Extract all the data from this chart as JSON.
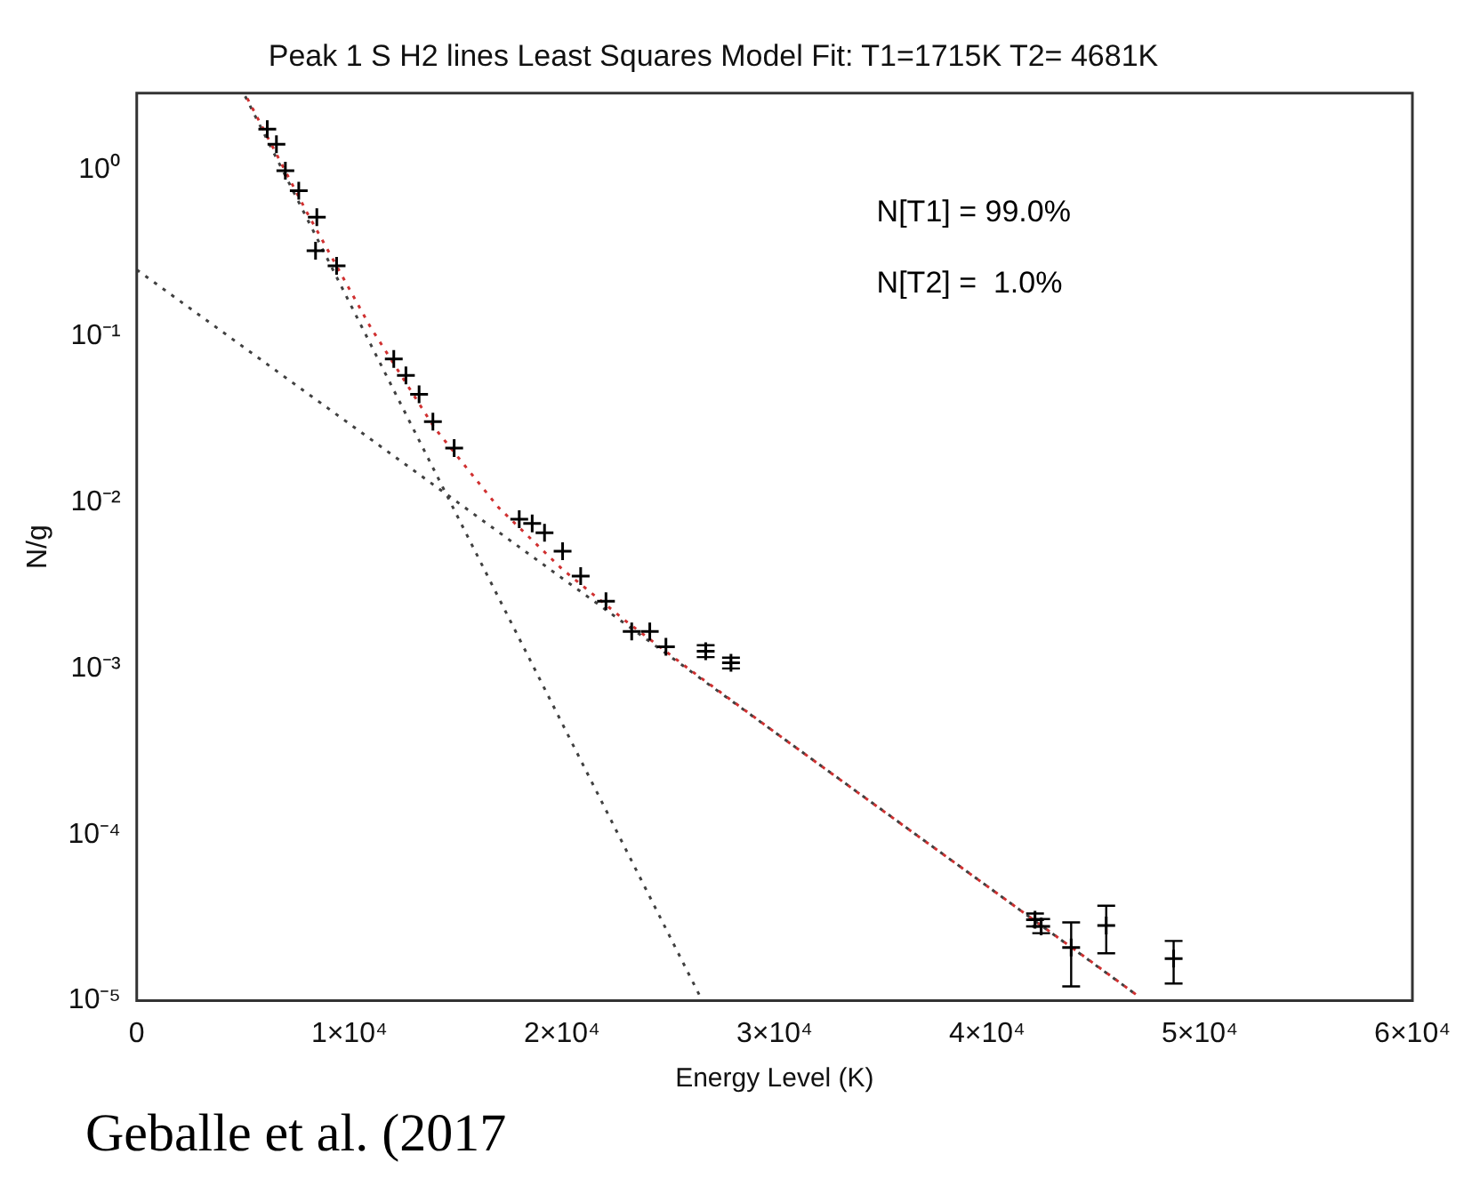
{
  "chart_data": {
    "type": "scatter",
    "title": "Peak 1 S H2 lines Least Squares Model Fit: T1=1715K T2= 4681K",
    "xlabel": "Energy Level (K)",
    "ylabel": "N/g",
    "log": "y",
    "grid": false,
    "legend": false,
    "marker": "cross",
    "xlim": [
      0,
      60000
    ],
    "ylim": [
      1e-05,
      2.9
    ],
    "xticks": [
      0,
      {
        "value": 10000,
        "label": "1×10⁴"
      },
      {
        "value": 20000,
        "label": "2×10⁴"
      },
      {
        "value": 30000,
        "label": "3×10⁴"
      },
      {
        "value": 40000,
        "label": "4×10⁴"
      },
      {
        "value": 50000,
        "label": "5×10⁴"
      },
      {
        "value": 60000,
        "label": "6×10⁴"
      }
    ],
    "yticks": [
      {
        "value": 1e-05,
        "label": "10⁻⁵"
      },
      {
        "value": 0.0001,
        "label": "10⁻⁴"
      },
      {
        "value": 0.001,
        "label": "10⁻³"
      },
      {
        "value": 0.01,
        "label": "10⁻²"
      },
      {
        "value": 0.1,
        "label": "10⁻¹"
      },
      {
        "value": 1,
        "label": "10⁰"
      }
    ],
    "annotations": [
      "N[T1] = 99.0%",
      "N[T2] =  1.0%",
      "Geballe et al. (2017"
    ],
    "series": [
      {
        "type": "scatter",
        "color": "#000000",
        "x": [
          6140,
          6570,
          6990,
          7620,
          8470,
          8410,
          9400,
          12090,
          12660,
          13280,
          13930,
          14930,
          17990,
          18600,
          19180,
          20030,
          20880,
          22070,
          23280,
          24130,
          24890,
          26760,
          27950,
          42250,
          42540,
          43950,
          45600,
          48770
        ],
        "values": [
          1.76,
          1.43,
          0.99,
          0.75,
          0.52,
          0.327,
          0.265,
          0.073,
          0.058,
          0.0447,
          0.0306,
          0.0212,
          0.0079,
          0.00747,
          0.00655,
          0.00508,
          0.00359,
          0.00254,
          0.00167,
          0.00167,
          0.00135,
          0.00127,
          0.00108,
          3.07e-05,
          2.8e-05,
          2.09e-05,
          2.84e-05,
          1.79e-05
        ],
        "errors": [
          null,
          null,
          null,
          null,
          null,
          null,
          null,
          null,
          null,
          null,
          null,
          null,
          null,
          null,
          null,
          null,
          null,
          null,
          null,
          null,
          null,
          [
            0.00117,
            0.00138
          ],
          [
            0.001,
            0.00116
          ],
          [
            2.8e-05,
            3.35e-05
          ],
          [
            2.55e-05,
            3.1e-05
          ],
          [
            1.22e-05,
            2.96e-05
          ],
          [
            1.93e-05,
            3.73e-05
          ],
          [
            1.27e-05,
            2.29e-05
          ]
        ]
      },
      {
        "type": "line",
        "color": "#d03030",
        "line_style": "dotted",
        "marker": "none",
        "x": [
          5200,
          8000,
          11000,
          14000,
          17000,
          20000,
          23000,
          26000,
          30000,
          35000,
          40000,
          45000,
          47000
        ],
        "values": [
          2.7,
          0.557,
          0.113,
          0.0281,
          0.00935,
          0.00397,
          0.00193,
          0.000986,
          0.000414,
          0.000142,
          4.89e-05,
          1.68e-05,
          1.09e-05
        ]
      },
      {
        "type": "line",
        "color": "#404040",
        "line_style": "dotted",
        "marker": "none",
        "x": [
          5100,
          10000,
          15000,
          20000,
          26500
        ],
        "values": [
          2.78,
          0.16,
          0.00865,
          0.000469,
          1.06e-05
        ]
      },
      {
        "type": "line",
        "color": "#404040",
        "line_style": "dotted",
        "marker": "none",
        "x": [
          0,
          10000,
          20000,
          30000,
          40000,
          47000
        ],
        "values": [
          0.251,
          0.0297,
          0.0035,
          0.000414,
          4.89e-05,
          1.09e-05
        ]
      }
    ]
  }
}
